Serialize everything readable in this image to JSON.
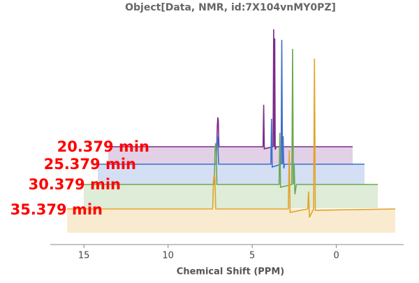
{
  "chart_data": {
    "type": "line",
    "title": "Object[Data, NMR, id:7X104vnMY0PZ]",
    "x_label": "Chemical Shift  (PPM)",
    "xlim": [
      17,
      -4
    ],
    "xticks": [
      15,
      10,
      5,
      0
    ],
    "series": [
      {
        "name": "20.379 min",
        "color": "#7b2b8c",
        "x": [
          16,
          7.35,
          7.3,
          7.26,
          7.22,
          7.17,
          3.65,
          3.6,
          3.55,
          2.85,
          2.8,
          2.75,
          2.72,
          2.68,
          2.6,
          -3.5
        ],
        "values": [
          0,
          0,
          30,
          42,
          38,
          0,
          0,
          60,
          -3,
          0,
          168,
          0,
          155,
          -4,
          0,
          0
        ]
      },
      {
        "name": "25.379 min",
        "color": "#3d6fcf",
        "x": [
          16,
          7.35,
          7.3,
          7.26,
          7.22,
          7.17,
          3.35,
          3.3,
          3.25,
          2.6,
          2.55,
          2.5,
          2.45,
          2.4,
          2.35,
          -3.5
        ],
        "values": [
          0,
          0,
          28,
          40,
          34,
          0,
          0,
          65,
          -4,
          0,
          178,
          0,
          40,
          -6,
          0,
          0
        ]
      },
      {
        "name": "30.379 min",
        "color": "#6aa84f",
        "x": [
          16,
          7.35,
          7.3,
          7.26,
          7.22,
          7.17,
          3.05,
          3.0,
          2.95,
          2.2,
          2.15,
          2.1,
          2.05,
          2.0,
          1.9,
          -3.5
        ],
        "values": [
          0,
          0,
          45,
          59,
          50,
          0,
          0,
          74,
          -4,
          0,
          194,
          0,
          30,
          -14,
          0,
          0
        ]
      },
      {
        "name": "35.379 min",
        "color": "#e3a32a",
        "x": [
          16,
          7.35,
          7.3,
          7.26,
          7.22,
          7.17,
          2.85,
          2.8,
          2.75,
          1.7,
          1.65,
          1.6,
          1.35,
          1.3,
          1.25,
          -3.5
        ],
        "values": [
          0,
          0,
          40,
          50,
          45,
          0,
          0,
          84,
          -5,
          0,
          25,
          -12,
          0,
          215,
          -2,
          0
        ]
      }
    ]
  }
}
